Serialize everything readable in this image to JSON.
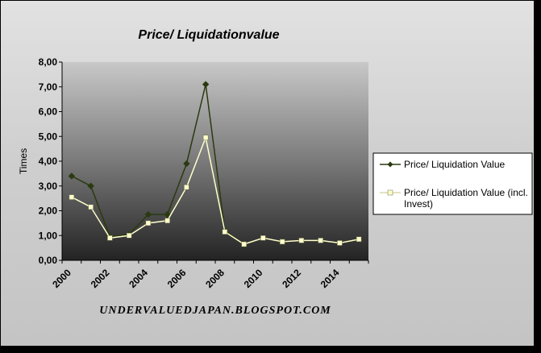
{
  "chart_data": {
    "type": "line",
    "title": "Price/ Liquidationvalue",
    "ylabel": "Times",
    "xlabel": "",
    "ylim": [
      0,
      8
    ],
    "yticks": [
      "0,00",
      "1,00",
      "2,00",
      "3,00",
      "4,00",
      "5,00",
      "6,00",
      "7,00",
      "8,00"
    ],
    "xticks": [
      "2000",
      "2002",
      "2004",
      "2006",
      "2008",
      "2010",
      "2012",
      "2014"
    ],
    "x": [
      2000,
      2001,
      2002,
      2003,
      2004,
      2005,
      2006,
      2007,
      2008,
      2009,
      2010,
      2011,
      2012,
      2013,
      2014,
      2015
    ],
    "grid": false,
    "legend_position": "right",
    "series": [
      {
        "name": "Price/ Liquidation Value",
        "values": [
          3.4,
          3.0,
          0.95,
          1.05,
          1.85,
          1.85,
          3.9,
          7.1,
          1.2,
          0.65,
          0.9,
          0.75,
          0.8,
          0.8,
          0.7,
          0.85
        ],
        "color": "#2b3a10",
        "marker": "diamond"
      },
      {
        "name": "Price/ Liquidation Value (incl. Invest)",
        "legend_lines": [
          "Price/ Liquidation Value (incl.",
          "Invest)"
        ],
        "values": [
          2.55,
          2.15,
          0.9,
          1.0,
          1.5,
          1.6,
          2.95,
          4.95,
          1.15,
          0.65,
          0.9,
          0.75,
          0.8,
          0.8,
          0.7,
          0.85
        ],
        "color": "#ffffcc",
        "marker": "square"
      }
    ],
    "footer": "UNDERVALUEDJAPAN.BLOGSPOT.COM"
  }
}
